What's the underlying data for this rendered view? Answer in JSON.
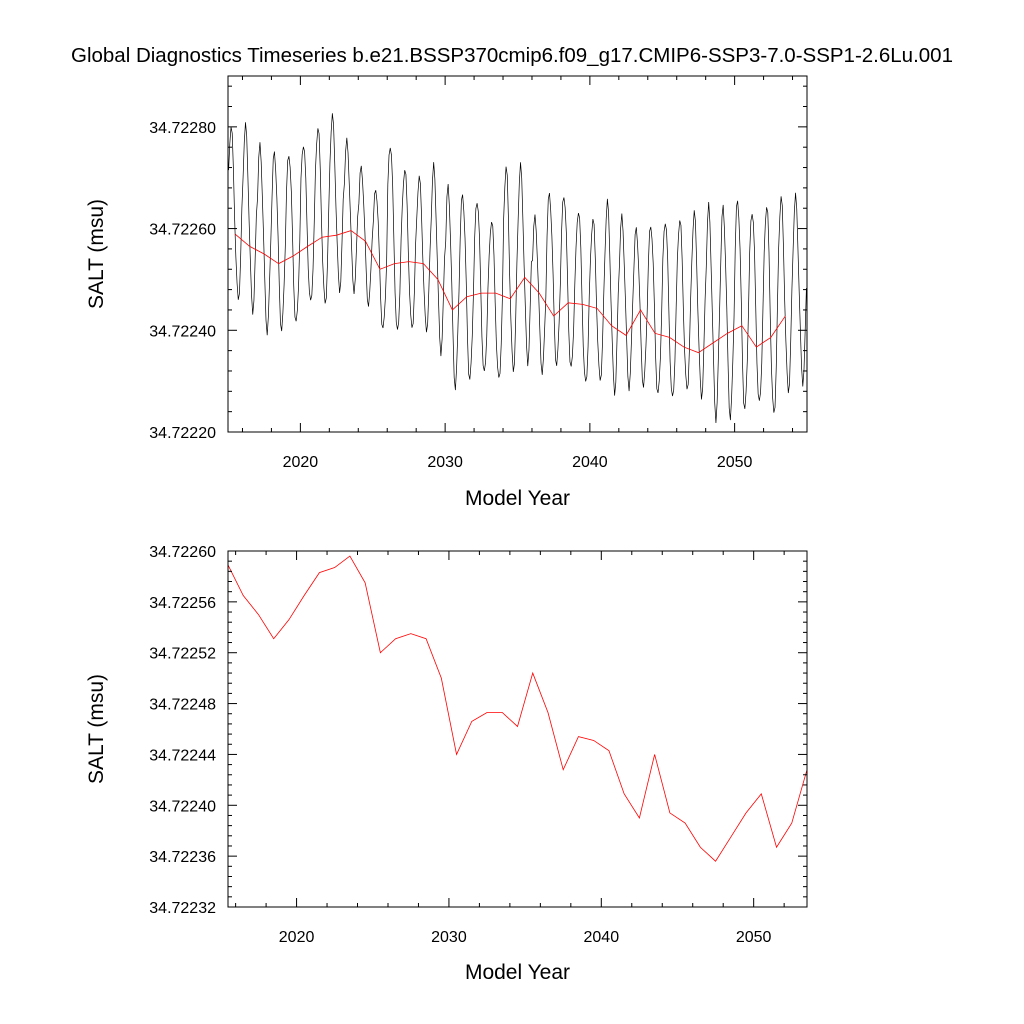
{
  "title": "Global Diagnostics Timeseries b.e21.BSSP370cmip6.f09_g17.CMIP6-SSP3-7.0-SSP1-2.6Lu.001",
  "colors": {
    "monthly": "#000000",
    "annual": "#ff0000",
    "axis": "#000000",
    "background": "#ffffff"
  },
  "chart_data": [
    {
      "type": "line",
      "title": "",
      "xlabel": "Model Year",
      "ylabel": "SALT (msu)",
      "xlim": [
        2015,
        2055
      ],
      "ylim": [
        34.7222,
        34.7229
      ],
      "xticks": [
        2020,
        2030,
        2040,
        2050
      ],
      "xtick_labels": [
        "2020",
        "2030",
        "2040",
        "2050"
      ],
      "yticks": [
        34.7222,
        34.7224,
        34.7226,
        34.7228
      ],
      "ytick_labels": [
        "34.72220",
        "34.72240",
        "34.72260",
        "34.72280"
      ],
      "grid": false,
      "series": [
        {
          "role": "monthly",
          "color": "#000000",
          "months_per_year": 12,
          "year_start": 2015,
          "annual_max": [
            34.7228,
            34.7228,
            34.72276,
            34.72275,
            34.72275,
            34.72277,
            34.7228,
            34.72282,
            34.72277,
            34.72272,
            34.72268,
            34.72277,
            34.72272,
            34.7227,
            34.72272,
            34.72268,
            34.72267,
            34.72266,
            34.72262,
            34.72272,
            34.72272,
            34.72262,
            34.72267,
            34.72267,
            34.72264,
            34.72262,
            34.72265,
            34.72262,
            34.7226,
            34.72261,
            34.72262,
            34.72262,
            34.72263,
            34.72264,
            34.72264,
            34.72266,
            34.72264,
            34.72265,
            34.72266,
            34.72266
          ],
          "annual_min": [
            34.72246,
            34.72244,
            34.7224,
            34.7224,
            34.72241,
            34.72245,
            34.72245,
            34.72248,
            34.72248,
            34.72245,
            34.7224,
            34.72239,
            34.7224,
            34.7224,
            34.72236,
            34.72229,
            34.7223,
            34.72231,
            34.7223,
            34.72232,
            34.72234,
            34.72232,
            34.72233,
            34.72232,
            34.72229,
            34.7223,
            34.72228,
            34.72229,
            34.72229,
            34.72227,
            34.72226,
            34.72228,
            34.72227,
            34.72223,
            34.72223,
            34.72224,
            34.72225,
            34.72223,
            34.72228,
            34.7223
          ]
        },
        {
          "role": "annual",
          "color": "#ff0000",
          "x": [
            2015.5,
            2016.5,
            2017.5,
            2018.5,
            2019.5,
            2020.5,
            2021.5,
            2022.5,
            2023.5,
            2024.5,
            2025.5,
            2026.5,
            2027.5,
            2028.5,
            2029.5,
            2030.5,
            2031.5,
            2032.5,
            2033.5,
            2034.5,
            2035.5,
            2036.5,
            2037.5,
            2038.5,
            2039.5,
            2040.5,
            2041.5,
            2042.5,
            2043.5,
            2044.5,
            2045.5,
            2046.5,
            2047.5,
            2048.5,
            2049.5,
            2050.5,
            2051.5,
            2052.5,
            2053.5
          ],
          "y": [
            34.722589,
            34.722565,
            34.72255,
            34.722531,
            34.722546,
            34.722565,
            34.722583,
            34.722587,
            34.722596,
            34.722575,
            34.72252,
            34.722531,
            34.722535,
            34.722531,
            34.7225,
            34.72244,
            34.722466,
            34.722473,
            34.722473,
            34.722462,
            34.722504,
            34.722473,
            34.722428,
            34.722454,
            34.722451,
            34.722443,
            34.722409,
            34.72239,
            34.72244,
            34.722394,
            34.722386,
            34.722367,
            34.722356,
            34.722375,
            34.722394,
            34.722409,
            34.722367,
            34.722386,
            34.722428
          ]
        }
      ]
    },
    {
      "type": "line",
      "title": "",
      "xlabel": "Model Year",
      "ylabel": "SALT (msu)",
      "xlim": [
        2015.5,
        2053.5
      ],
      "ylim": [
        34.72232,
        34.7226
      ],
      "xticks": [
        2020,
        2030,
        2040,
        2050
      ],
      "xtick_labels": [
        "2020",
        "2030",
        "2040",
        "2050"
      ],
      "yticks": [
        34.72232,
        34.72236,
        34.7224,
        34.72244,
        34.72248,
        34.72252,
        34.72256,
        34.7226
      ],
      "ytick_labels": [
        "34.72232",
        "34.72236",
        "34.72240",
        "34.72244",
        "34.72248",
        "34.72252",
        "34.72256",
        "34.72260"
      ],
      "grid": false,
      "series": [
        {
          "role": "annual",
          "color": "#ff0000",
          "x": [
            2015.5,
            2016.5,
            2017.5,
            2018.5,
            2019.5,
            2020.5,
            2021.5,
            2022.5,
            2023.5,
            2024.5,
            2025.5,
            2026.5,
            2027.5,
            2028.5,
            2029.5,
            2030.5,
            2031.5,
            2032.5,
            2033.5,
            2034.5,
            2035.5,
            2036.5,
            2037.5,
            2038.5,
            2039.5,
            2040.5,
            2041.5,
            2042.5,
            2043.5,
            2044.5,
            2045.5,
            2046.5,
            2047.5,
            2048.5,
            2049.5,
            2050.5,
            2051.5,
            2052.5,
            2053.5
          ],
          "y": [
            34.722589,
            34.722565,
            34.72255,
            34.722531,
            34.722546,
            34.722565,
            34.722583,
            34.722587,
            34.722596,
            34.722575,
            34.72252,
            34.722531,
            34.722535,
            34.722531,
            34.7225,
            34.72244,
            34.722466,
            34.722473,
            34.722473,
            34.722462,
            34.722504,
            34.722473,
            34.722428,
            34.722454,
            34.722451,
            34.722443,
            34.722409,
            34.72239,
            34.72244,
            34.722394,
            34.722386,
            34.722367,
            34.722356,
            34.722375,
            34.722394,
            34.722409,
            34.722367,
            34.722386,
            34.722428
          ]
        }
      ]
    }
  ]
}
